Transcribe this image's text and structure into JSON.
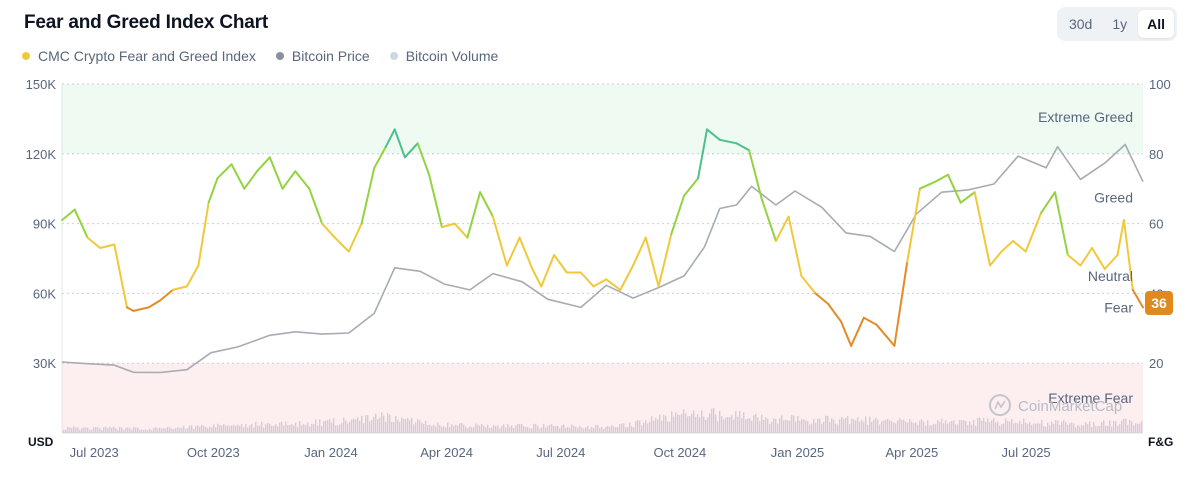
{
  "title": "Fear and Greed Index Chart",
  "ranges": [
    {
      "label": "30d",
      "active": false
    },
    {
      "label": "1y",
      "active": false
    },
    {
      "label": "All",
      "active": true
    }
  ],
  "legend": [
    {
      "label": "CMC Crypto Fear and Greed Index",
      "color": "#f0c93b"
    },
    {
      "label": "Bitcoin Price",
      "color": "#8a919e"
    },
    {
      "label": "Bitcoin Volume",
      "color": "#cfd6e4"
    }
  ],
  "chart_data": {
    "type": "line",
    "left_axis": {
      "unit": "USD",
      "min": 0,
      "max": 150000,
      "ticks": [
        "150K",
        "120K",
        "90K",
        "60K",
        "30K"
      ],
      "tick_values": [
        150000,
        120000,
        90000,
        60000,
        30000
      ]
    },
    "right_axis": {
      "unit": "F&G",
      "min": 0,
      "max": 100,
      "ticks": [
        "100",
        "80",
        "60",
        "40",
        "20"
      ],
      "tick_values": [
        100,
        80,
        60,
        40,
        20
      ]
    },
    "x_range": [
      "2023-06-25",
      "2025-10-20"
    ],
    "x_ticks": [
      {
        "label": "Jul 2023",
        "date": "2023-07-01"
      },
      {
        "label": "Oct 2023",
        "date": "2023-10-01"
      },
      {
        "label": "Jan 2024",
        "date": "2024-01-01"
      },
      {
        "label": "Apr 2024",
        "date": "2024-04-01"
      },
      {
        "label": "Jul 2024",
        "date": "2024-07-01"
      },
      {
        "label": "Oct 2024",
        "date": "2024-10-01"
      },
      {
        "label": "Jan 2025",
        "date": "2025-01-01"
      },
      {
        "label": "Apr 2025",
        "date": "2025-04-01"
      },
      {
        "label": "Jul 2025",
        "date": "2025-07-01"
      }
    ],
    "zones": [
      {
        "label": "Extreme Greed",
        "from": 80,
        "to": 100,
        "fill": "#eefaf2"
      },
      {
        "label": "Greed",
        "from": 60,
        "to": 80
      },
      {
        "label": "Neutral",
        "from": 40,
        "to": 60
      },
      {
        "label": "Fear",
        "from": 20,
        "to": 40
      },
      {
        "label": "Extreme Fear",
        "from": 0,
        "to": 20,
        "fill": "#fdeef0"
      }
    ],
    "current_value": "36",
    "grid": true,
    "series": [
      {
        "name": "CMC Crypto Fear and Greed Index",
        "axis": "right",
        "x": [
          "2023-06-25",
          "2023-07-05",
          "2023-07-15",
          "2023-07-25",
          "2023-08-05",
          "2023-08-15",
          "2023-08-20",
          "2023-09-01",
          "2023-09-10",
          "2023-09-20",
          "2023-10-01",
          "2023-10-10",
          "2023-10-18",
          "2023-10-25",
          "2023-11-05",
          "2023-11-15",
          "2023-11-25",
          "2023-12-05",
          "2023-12-15",
          "2023-12-25",
          "2024-01-05",
          "2024-01-15",
          "2024-01-25",
          "2024-02-05",
          "2024-02-15",
          "2024-02-25",
          "2024-03-05",
          "2024-03-12",
          "2024-03-20",
          "2024-03-30",
          "2024-04-08",
          "2024-04-18",
          "2024-04-28",
          "2024-05-08",
          "2024-05-18",
          "2024-05-28",
          "2024-06-08",
          "2024-06-18",
          "2024-06-28",
          "2024-07-05",
          "2024-07-15",
          "2024-07-25",
          "2024-08-05",
          "2024-08-15",
          "2024-08-25",
          "2024-09-05",
          "2024-09-15",
          "2024-09-25",
          "2024-10-05",
          "2024-10-15",
          "2024-10-25",
          "2024-11-05",
          "2024-11-12",
          "2024-11-22",
          "2024-12-05",
          "2024-12-15",
          "2024-12-25",
          "2025-01-05",
          "2025-01-15",
          "2025-01-25",
          "2025-02-05",
          "2025-02-15",
          "2025-02-25",
          "2025-03-05",
          "2025-03-15",
          "2025-03-25",
          "2025-04-08",
          "2025-04-18",
          "2025-04-28",
          "2025-05-10",
          "2025-05-20",
          "2025-05-30",
          "2025-06-10",
          "2025-06-22",
          "2025-07-01",
          "2025-07-10",
          "2025-07-20",
          "2025-08-01",
          "2025-08-12",
          "2025-08-22",
          "2025-09-01",
          "2025-09-10",
          "2025-09-20",
          "2025-09-30",
          "2025-10-05",
          "2025-10-12",
          "2025-10-20"
        ],
        "y": [
          61,
          64,
          56,
          53,
          54,
          36,
          35,
          36,
          38,
          41,
          42,
          48,
          66,
          73,
          77,
          70,
          75,
          79,
          70,
          75,
          70,
          60,
          56,
          52,
          60,
          76,
          82,
          87,
          79,
          83,
          74,
          59,
          60,
          56,
          69,
          62,
          48,
          56,
          47,
          42,
          51,
          46,
          46,
          42,
          44,
          41,
          48,
          56,
          42,
          57,
          68,
          73,
          87,
          84,
          83,
          81,
          67,
          55,
          62,
          45,
          40,
          37,
          32,
          25,
          33,
          31,
          25,
          49,
          70,
          72,
          74,
          66,
          69,
          48,
          52,
          55,
          52,
          63,
          69,
          51,
          48,
          53,
          47,
          51,
          61,
          41,
          36
        ]
      },
      {
        "name": "Bitcoin Price",
        "axis": "left",
        "x": [
          "2023-06-25",
          "2023-07-15",
          "2023-08-05",
          "2023-08-20",
          "2023-09-10",
          "2023-10-01",
          "2023-10-20",
          "2023-11-10",
          "2023-12-05",
          "2023-12-25",
          "2024-01-15",
          "2024-02-05",
          "2024-02-25",
          "2024-03-12",
          "2024-04-01",
          "2024-04-20",
          "2024-05-10",
          "2024-05-28",
          "2024-06-20",
          "2024-07-10",
          "2024-08-05",
          "2024-08-25",
          "2024-09-15",
          "2024-10-05",
          "2024-10-25",
          "2024-11-10",
          "2024-11-22",
          "2024-12-05",
          "2024-12-17",
          "2025-01-05",
          "2025-01-20",
          "2025-02-10",
          "2025-03-01",
          "2025-03-20",
          "2025-04-08",
          "2025-04-25",
          "2025-05-15",
          "2025-06-05",
          "2025-06-25",
          "2025-07-14",
          "2025-08-05",
          "2025-08-14",
          "2025-09-01",
          "2025-09-20",
          "2025-10-06",
          "2025-10-20"
        ],
        "y": [
          30500,
          29800,
          29200,
          26100,
          26000,
          27200,
          34500,
          37000,
          42000,
          43500,
          42500,
          43000,
          51500,
          71000,
          69500,
          64000,
          61500,
          68500,
          65000,
          57500,
          54000,
          63500,
          58000,
          62500,
          67500,
          80000,
          96500,
          98000,
          106000,
          98000,
          104000,
          97000,
          86000,
          84500,
          78000,
          94000,
          103500,
          104500,
          107000,
          119000,
          114000,
          123000,
          109000,
          116000,
          124000,
          108000
        ]
      },
      {
        "name": "Bitcoin Volume",
        "axis": "left",
        "x": [
          "2023-07-01",
          "2023-09-01",
          "2023-11-01",
          "2024-01-01",
          "2024-03-01",
          "2024-05-01",
          "2024-07-01",
          "2024-09-01",
          "2024-11-01",
          "2025-01-01",
          "2025-03-01",
          "2025-05-01",
          "2025-07-01",
          "2025-09-01",
          "2025-10-15"
        ],
        "y": [
          3000,
          2500,
          4500,
          5500,
          9000,
          4500,
          4000,
          3500,
          12000,
          8000,
          7500,
          6000,
          7000,
          5000,
          6500
        ]
      }
    ]
  }
}
